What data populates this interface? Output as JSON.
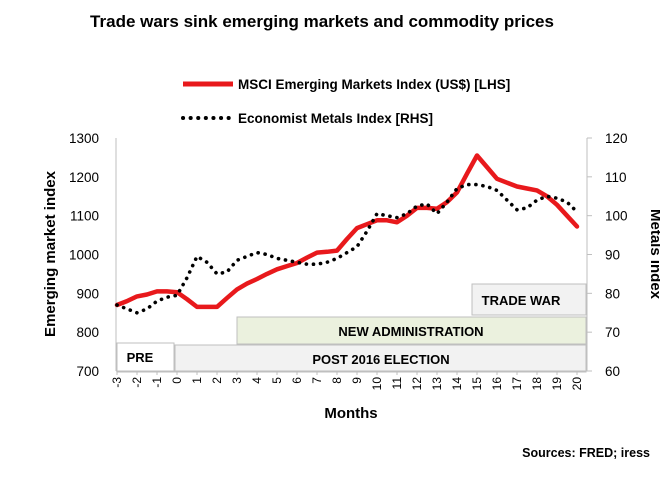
{
  "chart_data": {
    "type": "line",
    "title": "Trade wars sink emerging markets and commodity prices",
    "xlabel": "Months",
    "ylabel_left": "Emerging market index",
    "ylabel_right": "Metals index",
    "x": [
      -3,
      -2.5,
      -2,
      -1.5,
      -1,
      -0.5,
      0,
      0.5,
      1,
      1.5,
      2,
      2.5,
      3,
      3.5,
      4,
      4.5,
      5,
      5.5,
      6,
      6.5,
      7,
      7.5,
      8,
      8.5,
      9,
      9.5,
      10,
      10.5,
      11,
      11.5,
      12,
      12.5,
      13,
      13.5,
      14,
      14.5,
      15,
      15.5,
      16,
      16.5,
      17,
      17.5,
      18,
      18.5,
      19,
      19.5,
      20
    ],
    "x_ticks": [
      -3,
      -2,
      -1,
      0,
      1,
      2,
      3,
      4,
      5,
      6,
      7,
      8,
      9,
      10,
      11,
      12,
      13,
      14,
      15,
      16,
      17,
      18,
      19,
      20
    ],
    "ylim_left": [
      700,
      1300
    ],
    "yticks_left": [
      700,
      800,
      900,
      1000,
      1100,
      1200,
      1300
    ],
    "ylim_right": [
      60,
      120
    ],
    "yticks_right": [
      60,
      70,
      80,
      90,
      100,
      110,
      120
    ],
    "grid": false,
    "legend_position": "top",
    "series": [
      {
        "name": "MSCI Emerging Markets Index (US$) [LHS]",
        "axis": "left",
        "style": "solid",
        "color": "#e8191c",
        "values": [
          870,
          880,
          892,
          897,
          905,
          905,
          903,
          885,
          865,
          865,
          865,
          888,
          910,
          925,
          937,
          950,
          962,
          970,
          978,
          992,
          1005,
          1007,
          1010,
          1040,
          1068,
          1078,
          1088,
          1088,
          1083,
          1100,
          1120,
          1120,
          1118,
          1135,
          1160,
          1208,
          1255,
          1225,
          1195,
          1185,
          1175,
          1170,
          1165,
          1150,
          1128,
          1100,
          1072
        ]
      },
      {
        "name": "Economist Metals Index [RHS]",
        "axis": "right",
        "style": "dotted",
        "color": "#000000",
        "values": [
          77,
          76,
          75,
          76,
          78,
          79,
          79.5,
          84,
          89.5,
          88,
          85,
          85.5,
          88.5,
          89.5,
          90.5,
          90,
          89,
          88.5,
          88,
          87.5,
          87.5,
          88,
          89,
          90.5,
          92,
          96,
          100.5,
          100,
          99.5,
          100.5,
          102.5,
          103,
          100.5,
          103.5,
          107,
          108,
          108,
          107.5,
          106.5,
          104,
          101.5,
          102,
          104,
          105,
          104.5,
          103.5,
          101
        ]
      }
    ],
    "annotations": [
      "TRADE WAR",
      "NEW ADMINISTRATION",
      "PRE",
      "POST 2016 ELECTION"
    ],
    "source": "Sources: FRED; iress"
  }
}
